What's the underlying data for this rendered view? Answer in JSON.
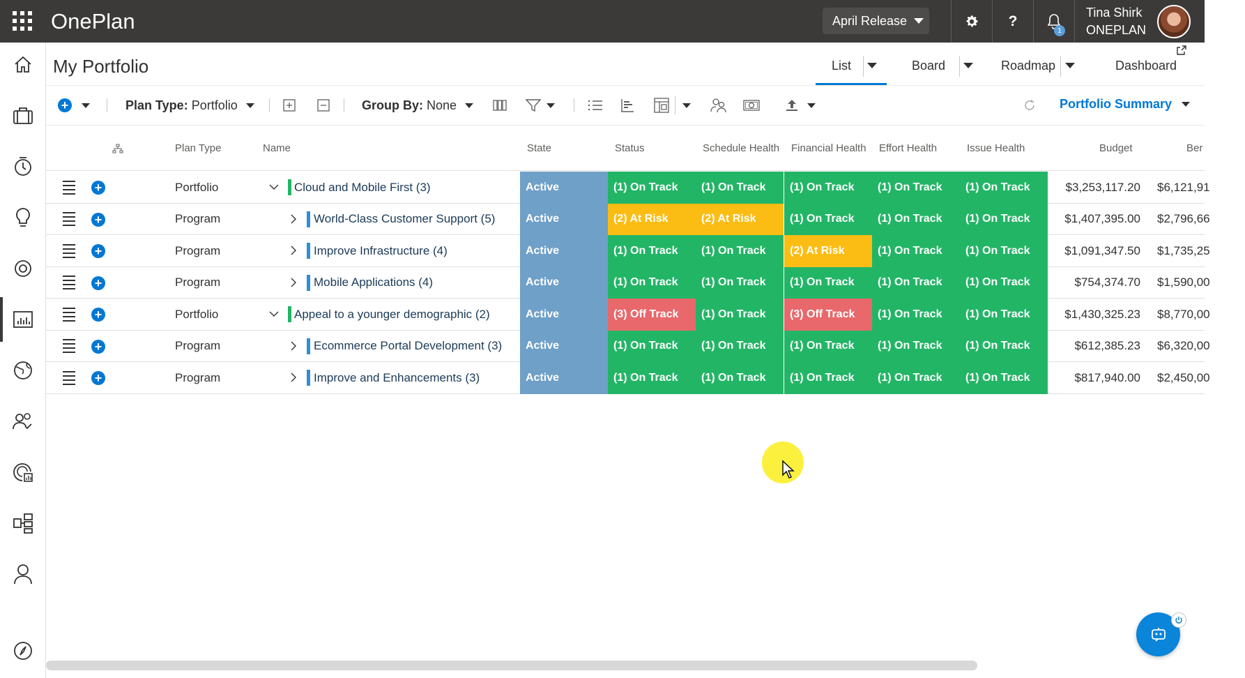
{
  "app": {
    "title": "OnePlan"
  },
  "topbar": {
    "release_label": "April Release",
    "help_glyph": "?",
    "notification_count": "1",
    "user_name": "Tina Shirk",
    "user_org": "ONEPLAN"
  },
  "page": {
    "title": "My Portfolio"
  },
  "views": [
    {
      "label": "List",
      "active": true
    },
    {
      "label": "Board"
    },
    {
      "label": "Roadmap"
    },
    {
      "label": "Dashboard"
    }
  ],
  "toolbar": {
    "plan_type_label": "Plan Type:",
    "plan_type_value": "Portfolio",
    "group_by_label": "Group By:",
    "group_by_value": "None",
    "summary_label": "Portfolio Summary"
  },
  "columns": {
    "plan_type": "Plan Type",
    "name": "Name",
    "state": "State",
    "status": "Status",
    "schedule": "Schedule Health",
    "financial": "Financial Health",
    "effort": "Effort Health",
    "issue": "Issue Health",
    "budget": "Budget",
    "benefit": "Ber"
  },
  "colors": {
    "on_track": "#23b566",
    "at_risk": "#fbbc14",
    "off_track": "#e8686b",
    "state": "#6fa0c8",
    "accent": "#0078d4",
    "portfolio_bar": "#23b566",
    "program_bar": "#2e8fd9"
  },
  "rows": [
    {
      "type": "Portfolio",
      "name": "Cloud and Mobile First (3)",
      "expanded": true,
      "state": "Active",
      "status": "(1) On Track",
      "schedule": "(1) On Track",
      "financial": "(1) On Track",
      "effort": "(1) On Track",
      "issue": "(1) On Track",
      "budget": "$3,253,117.20",
      "benefit": "$6,121,91"
    },
    {
      "type": "Program",
      "name": "World-Class Customer Support (5)",
      "expanded": false,
      "state": "Active",
      "status": "(2) At Risk",
      "schedule": "(2) At Risk",
      "financial": "(1) On Track",
      "effort": "(1) On Track",
      "issue": "(1) On Track",
      "budget": "$1,407,395.00",
      "benefit": "$2,796,66"
    },
    {
      "type": "Program",
      "name": "Improve Infrastructure (4)",
      "expanded": false,
      "state": "Active",
      "status": "(1) On Track",
      "schedule": "(1) On Track",
      "financial": "(2) At Risk",
      "effort": "(1) On Track",
      "issue": "(1) On Track",
      "budget": "$1,091,347.50",
      "benefit": "$1,735,25"
    },
    {
      "type": "Program",
      "name": "Mobile Applications (4)",
      "expanded": false,
      "state": "Active",
      "status": "(1) On Track",
      "schedule": "(1) On Track",
      "financial": "(1) On Track",
      "effort": "(1) On Track",
      "issue": "(1) On Track",
      "budget": "$754,374.70",
      "benefit": "$1,590,00"
    },
    {
      "type": "Portfolio",
      "name": "Appeal to a younger demographic (2)",
      "expanded": true,
      "state": "Active",
      "status": "(3) Off Track",
      "schedule": "(1) On Track",
      "financial": "(3) Off Track",
      "effort": "(1) On Track",
      "issue": "(1) On Track",
      "budget": "$1,430,325.23",
      "benefit": "$8,770,00"
    },
    {
      "type": "Program",
      "name": "Ecommerce Portal Development (3)",
      "expanded": false,
      "state": "Active",
      "status": "(1) On Track",
      "schedule": "(1) On Track",
      "financial": "(1) On Track",
      "effort": "(1) On Track",
      "issue": "(1) On Track",
      "budget": "$612,385.23",
      "benefit": "$6,320,00"
    },
    {
      "type": "Program",
      "name": "Improve and Enhancements (3)",
      "expanded": false,
      "state": "Active",
      "status": "(1) On Track",
      "schedule": "(1) On Track",
      "financial": "(1) On Track",
      "effort": "(1) On Track",
      "issue": "(1) On Track",
      "budget": "$817,940.00",
      "benefit": "$2,450,00"
    }
  ]
}
